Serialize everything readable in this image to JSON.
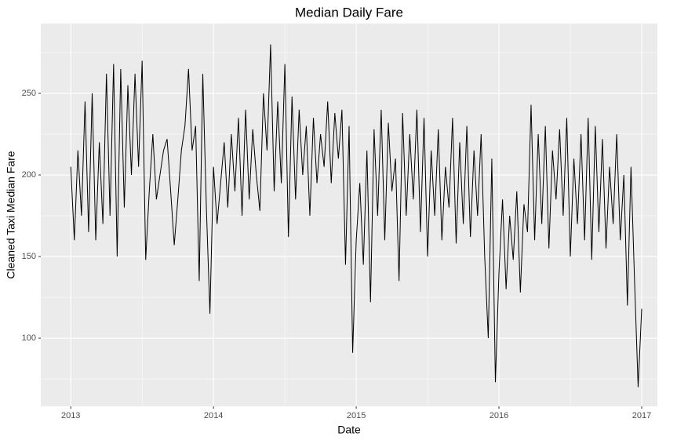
{
  "chart_data": {
    "type": "line",
    "title": "Median Daily Fare",
    "x_label": "Date",
    "y_label": "Cleaned Taxi Median Fare",
    "x": [
      2013,
      2013.025,
      2013.05,
      2013.075,
      2013.1,
      2013.125,
      2013.15,
      2013.175,
      2013.2,
      2013.225,
      2013.25,
      2013.275,
      2013.3,
      2013.325,
      2013.35,
      2013.375,
      2013.4,
      2013.425,
      2013.45,
      2013.475,
      2013.5,
      2013.525,
      2013.55,
      2013.575,
      2013.6,
      2013.625,
      2013.65,
      2013.675,
      2013.7,
      2013.725,
      2013.75,
      2013.775,
      2013.8,
      2013.825,
      2013.85,
      2013.875,
      2013.9,
      2013.925,
      2013.95,
      2013.975,
      2014,
      2014.025,
      2014.05,
      2014.075,
      2014.1,
      2014.125,
      2014.15,
      2014.175,
      2014.2,
      2014.225,
      2014.25,
      2014.275,
      2014.3,
      2014.325,
      2014.35,
      2014.375,
      2014.4,
      2014.425,
      2014.45,
      2014.475,
      2014.5,
      2014.525,
      2014.55,
      2014.575,
      2014.6,
      2014.625,
      2014.65,
      2014.675,
      2014.7,
      2014.725,
      2014.75,
      2014.775,
      2014.8,
      2014.825,
      2014.85,
      2014.875,
      2014.9,
      2014.925,
      2014.95,
      2014.975,
      2015,
      2015.025,
      2015.05,
      2015.075,
      2015.1,
      2015.125,
      2015.15,
      2015.175,
      2015.2,
      2015.225,
      2015.25,
      2015.275,
      2015.3,
      2015.325,
      2015.35,
      2015.375,
      2015.4,
      2015.425,
      2015.45,
      2015.475,
      2015.5,
      2015.525,
      2015.55,
      2015.575,
      2015.6,
      2015.625,
      2015.65,
      2015.675,
      2015.7,
      2015.725,
      2015.75,
      2015.775,
      2015.8,
      2015.825,
      2015.85,
      2015.875,
      2015.9,
      2015.925,
      2015.95,
      2015.975,
      2016,
      2016.025,
      2016.05,
      2016.075,
      2016.1,
      2016.125,
      2016.15,
      2016.175,
      2016.2,
      2016.225,
      2016.25,
      2016.275,
      2016.3,
      2016.325,
      2016.35,
      2016.375,
      2016.4,
      2016.425,
      2016.45,
      2016.475,
      2016.5,
      2016.525,
      2016.55,
      2016.575,
      2016.6,
      2016.625,
      2016.65,
      2016.675,
      2016.7,
      2016.725,
      2016.75,
      2016.775,
      2016.8,
      2016.825,
      2016.85,
      2016.875,
      2016.9,
      2016.925,
      2016.95,
      2016.975,
      2017
    ],
    "values": [
      205,
      160,
      215,
      175,
      245,
      165,
      250,
      160,
      220,
      170,
      262,
      175,
      268,
      150,
      265,
      180,
      255,
      200,
      262,
      205,
      270,
      148,
      190,
      225,
      185,
      200,
      215,
      222,
      190,
      157,
      185,
      215,
      230,
      265,
      215,
      230,
      135,
      262,
      180,
      115,
      205,
      170,
      195,
      220,
      180,
      225,
      190,
      235,
      175,
      240,
      185,
      228,
      200,
      178,
      250,
      215,
      280,
      190,
      245,
      195,
      268,
      162,
      248,
      185,
      240,
      200,
      230,
      175,
      235,
      195,
      225,
      205,
      245,
      195,
      238,
      210,
      240,
      145,
      230,
      91,
      160,
      195,
      145,
      215,
      122,
      228,
      175,
      240,
      160,
      232,
      190,
      210,
      135,
      238,
      175,
      225,
      185,
      240,
      165,
      235,
      150,
      215,
      175,
      228,
      160,
      205,
      180,
      235,
      158,
      220,
      170,
      230,
      162,
      215,
      175,
      225,
      150,
      100,
      210,
      73,
      140,
      185,
      130,
      175,
      148,
      190,
      128,
      182,
      165,
      243,
      160,
      225,
      170,
      230,
      155,
      215,
      185,
      228,
      175,
      235,
      150,
      210,
      170,
      225,
      160,
      235,
      148,
      230,
      165,
      222,
      155,
      205,
      170,
      225,
      160,
      200,
      120,
      205,
      135,
      70,
      118
    ],
    "color": "#000000",
    "xlim": [
      2012.79,
      2017.11
    ],
    "xticks": [
      2013,
      2014,
      2015,
      2016,
      2017
    ],
    "xminor": [
      2013.5,
      2014.5,
      2015.5,
      2016.5
    ],
    "ylim": [
      58.2,
      292.8
    ],
    "yticks": [
      100,
      150,
      200,
      250
    ],
    "yminor": [
      75,
      125,
      175,
      225,
      275
    ],
    "grid": true
  }
}
